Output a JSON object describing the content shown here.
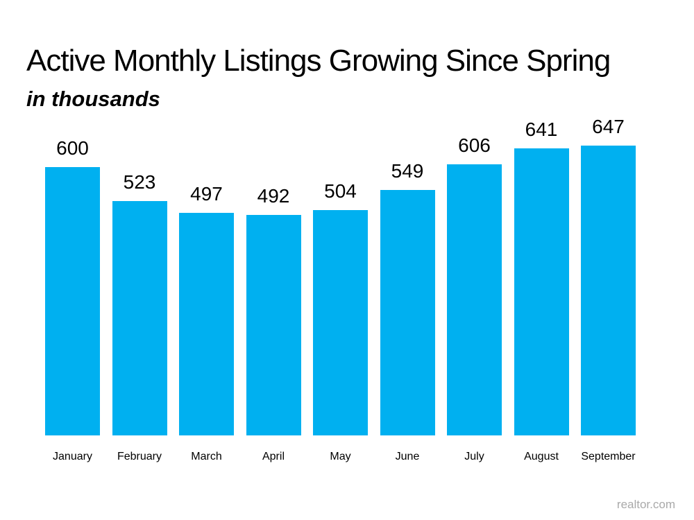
{
  "page": {
    "watermark": "realtor.com"
  },
  "colors": {
    "bar": "#00B0F0",
    "text": "#000000",
    "watermark": "#A9A9A9",
    "background": "#FFFFFF"
  },
  "chart_data": {
    "type": "bar",
    "title": "Active Monthly Listings Growing Since Spring",
    "subtitle": "in thousands",
    "categories": [
      "January",
      "February",
      "March",
      "April",
      "May",
      "June",
      "July",
      "August",
      "September"
    ],
    "values": [
      600,
      523,
      497,
      492,
      504,
      549,
      606,
      641,
      647
    ],
    "ylim": [
      0,
      700
    ],
    "grid": false,
    "legend": "none",
    "data_labels": true,
    "xlabel": "",
    "ylabel": "",
    "bar_color": "#00B0F0"
  }
}
